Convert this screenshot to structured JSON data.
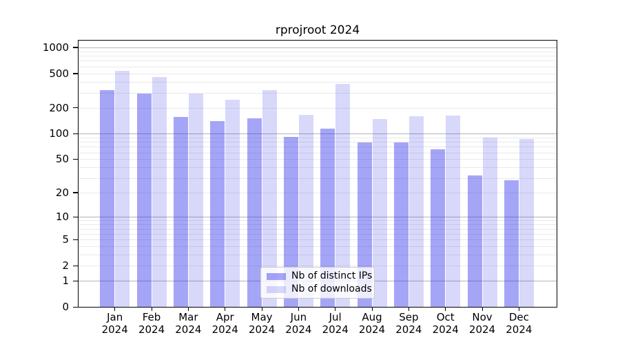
{
  "chart_data": {
    "type": "bar",
    "title": "rprojroot 2024",
    "x_tick_months": [
      "Jan",
      "Feb",
      "Mar",
      "Apr",
      "May",
      "Jun",
      "Jul",
      "Aug",
      "Sep",
      "Oct",
      "Nov",
      "Dec"
    ],
    "x_tick_year": "2024",
    "y_ticks": [
      0,
      1,
      2,
      5,
      10,
      20,
      50,
      100,
      200,
      500,
      1000
    ],
    "y_tick_labels": [
      "0",
      "1",
      "2",
      "5",
      "10",
      "20",
      "50",
      "100",
      "200",
      "500",
      "1000"
    ],
    "y_scale": "log10(value+1)",
    "ylim": [
      0,
      1200
    ],
    "grid": "on",
    "legend_position": "lower center",
    "series": [
      {
        "name": "Nb of distinct IPs",
        "color": "rgba(40,40,235,0.42)",
        "values": [
          320,
          290,
          156,
          140,
          150,
          91,
          115,
          79,
          79,
          66,
          32,
          28
        ]
      },
      {
        "name": "Nb of downloads",
        "color": "rgba(40,40,235,0.18)",
        "values": [
          540,
          450,
          290,
          248,
          320,
          165,
          380,
          148,
          158,
          163,
          90,
          87
        ]
      }
    ]
  },
  "colors": {
    "background": "#ffffff",
    "axis": "#000000",
    "grid_major": "#b3b3b3",
    "grid_minor": "#e9e9e9",
    "text": "#000000",
    "legend_background": "rgba(255,255,255,0.8)",
    "legend_border": "#cccccc"
  }
}
